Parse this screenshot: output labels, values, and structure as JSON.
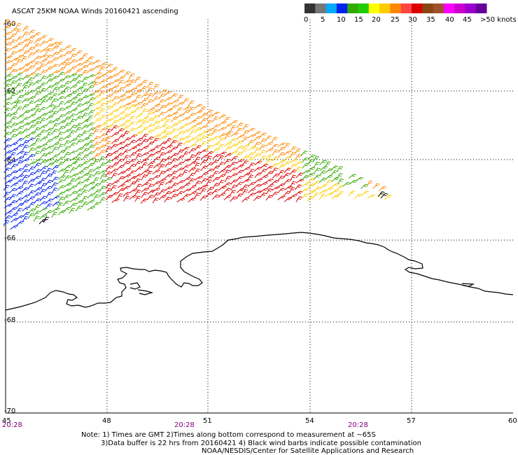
{
  "header": {
    "title": "ASCAT 25KM NOAA Winds 20160421 ascending"
  },
  "legend": {
    "colors": [
      "#333333",
      "#777777",
      "#00aaff",
      "#0022ee",
      "#33aa00",
      "#22cc00",
      "#ffff00",
      "#ffcc00",
      "#ff8800",
      "#ff4444",
      "#dd0000",
      "#8b4513",
      "#a0522d",
      "#ff00ff",
      "#cc00cc",
      "#9900cc",
      "#660099"
    ],
    "labels": [
      "0",
      "5",
      "10",
      "15",
      "20",
      "25",
      "30",
      "35",
      "40",
      "45",
      ">50 knots"
    ]
  },
  "axes": {
    "lat_labels": [
      "-60",
      "-62",
      "-64",
      "-66",
      "-68",
      "-70"
    ],
    "lon_labels": [
      "45",
      "48",
      "51",
      "54",
      "57",
      "60"
    ],
    "time_labels": [
      "20:28",
      "20:28",
      "20:28"
    ]
  },
  "notes": {
    "line1": "Note: 1) Times are GMT 2)Times along bottom correspond to measurement at ~65S",
    "line2": "3)Data buffer is 22 hrs from 20160421 4) Black wind barbs indicate possible contamination",
    "line3": "NOAA/NESDIS/Center for Satellite Applications and Research"
  }
}
